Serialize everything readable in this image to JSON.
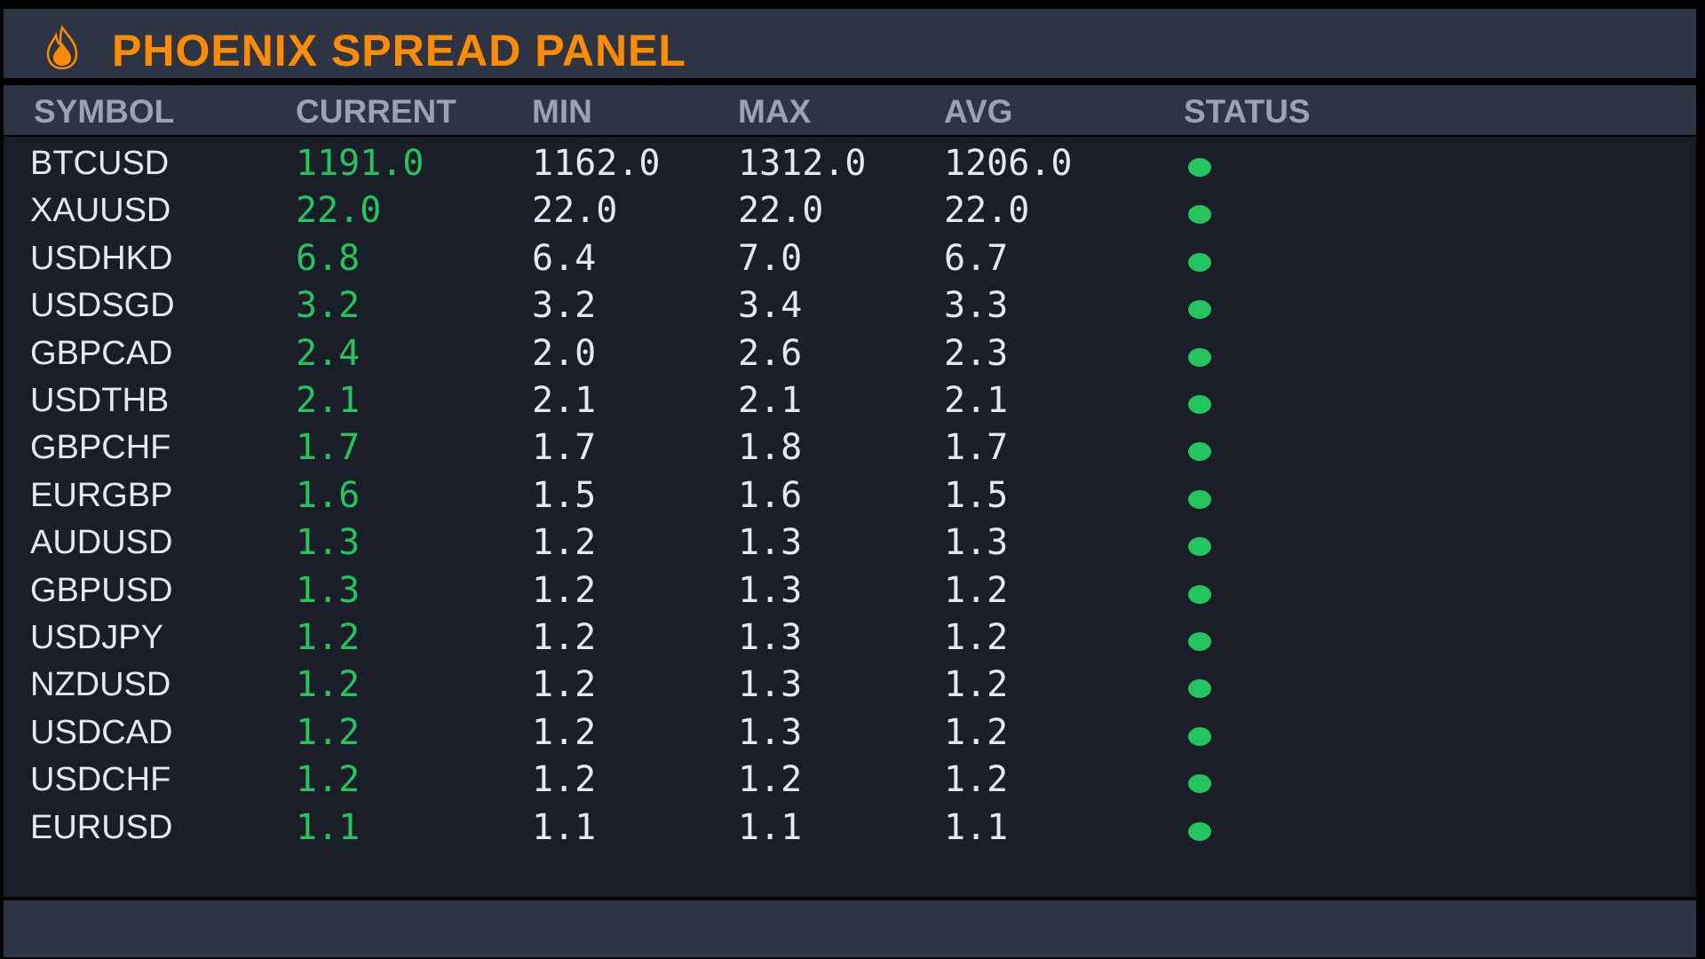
{
  "title": "PHOENIX SPREAD PANEL",
  "icons": {
    "title_icon": "flame-icon",
    "status_icon": "status-dot"
  },
  "colors": {
    "accent": "#ff8c00",
    "status_ok": "#22c55e",
    "current_value": "#22c55e"
  },
  "columns": [
    "SYMBOL",
    "CURRENT",
    "MIN",
    "MAX",
    "AVG",
    "STATUS"
  ],
  "rows": [
    {
      "symbol": "BTCUSD",
      "current": "1191.0",
      "min": "1162.0",
      "max": "1312.0",
      "avg": "1206.0",
      "status": "ok"
    },
    {
      "symbol": "XAUUSD",
      "current": "22.0",
      "min": "22.0",
      "max": "22.0",
      "avg": "22.0",
      "status": "ok"
    },
    {
      "symbol": "USDHKD",
      "current": "6.8",
      "min": "6.4",
      "max": "7.0",
      "avg": "6.7",
      "status": "ok"
    },
    {
      "symbol": "USDSGD",
      "current": "3.2",
      "min": "3.2",
      "max": "3.4",
      "avg": "3.3",
      "status": "ok"
    },
    {
      "symbol": "GBPCAD",
      "current": "2.4",
      "min": "2.0",
      "max": "2.6",
      "avg": "2.3",
      "status": "ok"
    },
    {
      "symbol": "USDTHB",
      "current": "2.1",
      "min": "2.1",
      "max": "2.1",
      "avg": "2.1",
      "status": "ok"
    },
    {
      "symbol": "GBPCHF",
      "current": "1.7",
      "min": "1.7",
      "max": "1.8",
      "avg": "1.7",
      "status": "ok"
    },
    {
      "symbol": "EURGBP",
      "current": "1.6",
      "min": "1.5",
      "max": "1.6",
      "avg": "1.5",
      "status": "ok"
    },
    {
      "symbol": "AUDUSD",
      "current": "1.3",
      "min": "1.2",
      "max": "1.3",
      "avg": "1.3",
      "status": "ok"
    },
    {
      "symbol": "GBPUSD",
      "current": "1.3",
      "min": "1.2",
      "max": "1.3",
      "avg": "1.2",
      "status": "ok"
    },
    {
      "symbol": "USDJPY",
      "current": "1.2",
      "min": "1.2",
      "max": "1.3",
      "avg": "1.2",
      "status": "ok"
    },
    {
      "symbol": "NZDUSD",
      "current": "1.2",
      "min": "1.2",
      "max": "1.3",
      "avg": "1.2",
      "status": "ok"
    },
    {
      "symbol": "USDCAD",
      "current": "1.2",
      "min": "1.2",
      "max": "1.3",
      "avg": "1.2",
      "status": "ok"
    },
    {
      "symbol": "USDCHF",
      "current": "1.2",
      "min": "1.2",
      "max": "1.2",
      "avg": "1.2",
      "status": "ok"
    },
    {
      "symbol": "EURUSD",
      "current": "1.1",
      "min": "1.1",
      "max": "1.1",
      "avg": "1.1",
      "status": "ok"
    }
  ]
}
